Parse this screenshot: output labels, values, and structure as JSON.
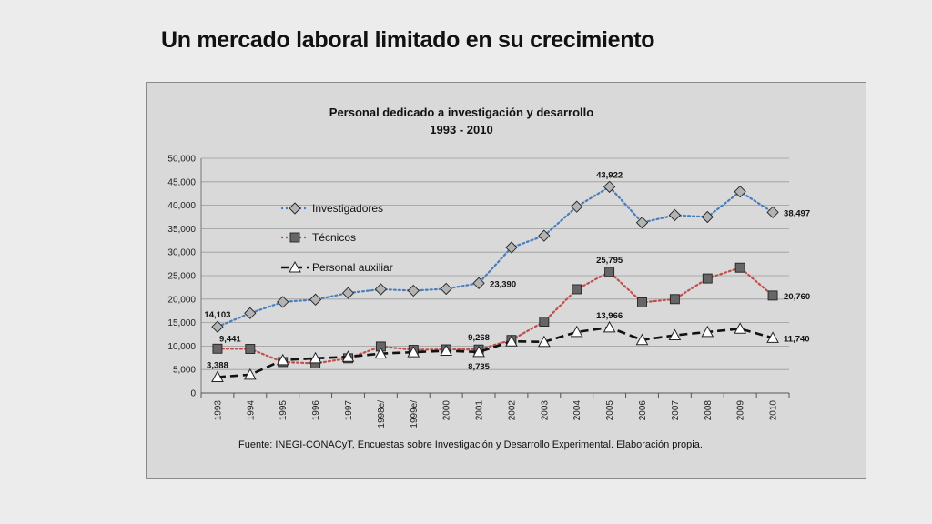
{
  "slide": {
    "title": "Un mercado laboral limitado en su crecimiento"
  },
  "chart_data": {
    "type": "line",
    "title": "Personal dedicado a investigación y desarrollo",
    "subtitle": "1993 - 2010",
    "categories": [
      "1993",
      "1994",
      "1995",
      "1996",
      "1997",
      "1998e/",
      "1999e/",
      "2000",
      "2001",
      "2002",
      "2003",
      "2004",
      "2005",
      "2006",
      "2007",
      "2008",
      "2009",
      "2010"
    ],
    "ylim": [
      0,
      50000
    ],
    "yticks": [
      0,
      5000,
      10000,
      15000,
      20000,
      25000,
      30000,
      35000,
      40000,
      45000,
      50000
    ],
    "ytick_labels": [
      "0",
      "5,000",
      "10,000",
      "15,000",
      "20,000",
      "25,000",
      "30,000",
      "35,000",
      "40,000",
      "45,000",
      "50,000"
    ],
    "grid": true,
    "legend_position": "top-left-inside",
    "series": [
      {
        "name": "Investigadores",
        "color": "#4a7ebb",
        "line_style": "dotted",
        "marker": "diamond",
        "marker_color": "#b3b3b3",
        "values": [
          14103,
          17000,
          19400,
          19900,
          21300,
          22100,
          21800,
          22200,
          23390,
          31000,
          33500,
          39700,
          43922,
          36300,
          37900,
          37500,
          42900,
          38497
        ],
        "labels": [
          {
            "index": 0,
            "text": "14,103",
            "pos": "above"
          },
          {
            "index": 8,
            "text": "23,390",
            "pos": "right"
          },
          {
            "index": 12,
            "text": "43,922",
            "pos": "above"
          },
          {
            "index": 17,
            "text": "38,497",
            "pos": "right"
          }
        ]
      },
      {
        "name": "Técnicos",
        "color": "#c0504d",
        "line_style": "dotted",
        "marker": "square",
        "marker_color": "#666666",
        "values": [
          9441,
          9400,
          6600,
          6300,
          7400,
          9900,
          9200,
          9300,
          9268,
          11300,
          15200,
          22100,
          25795,
          19300,
          20000,
          24400,
          26700,
          20760
        ],
        "labels": [
          {
            "index": 0,
            "text": "9,441",
            "pos": "above-right"
          },
          {
            "index": 8,
            "text": "9,268",
            "pos": "above"
          },
          {
            "index": 12,
            "text": "25,795",
            "pos": "above"
          },
          {
            "index": 17,
            "text": "20,760",
            "pos": "right"
          }
        ]
      },
      {
        "name": "Personal auxiliar",
        "color": "#111111",
        "line_style": "dashed",
        "marker": "triangle",
        "marker_color": "#ffffff",
        "values": [
          3388,
          3900,
          7000,
          7400,
          7700,
          8400,
          8700,
          9000,
          8735,
          11000,
          10900,
          13000,
          13966,
          11300,
          12300,
          13000,
          13700,
          11740
        ],
        "labels": [
          {
            "index": 0,
            "text": "3,388",
            "pos": "above"
          },
          {
            "index": 8,
            "text": "8,735",
            "pos": "below"
          },
          {
            "index": 12,
            "text": "13,966",
            "pos": "above"
          },
          {
            "index": 17,
            "text": "11,740",
            "pos": "right"
          }
        ]
      }
    ],
    "source_note": "Fuente: INEGI-CONACyT, Encuestas sobre Investigación y Desarrollo Experimental. Elaboración propia."
  }
}
